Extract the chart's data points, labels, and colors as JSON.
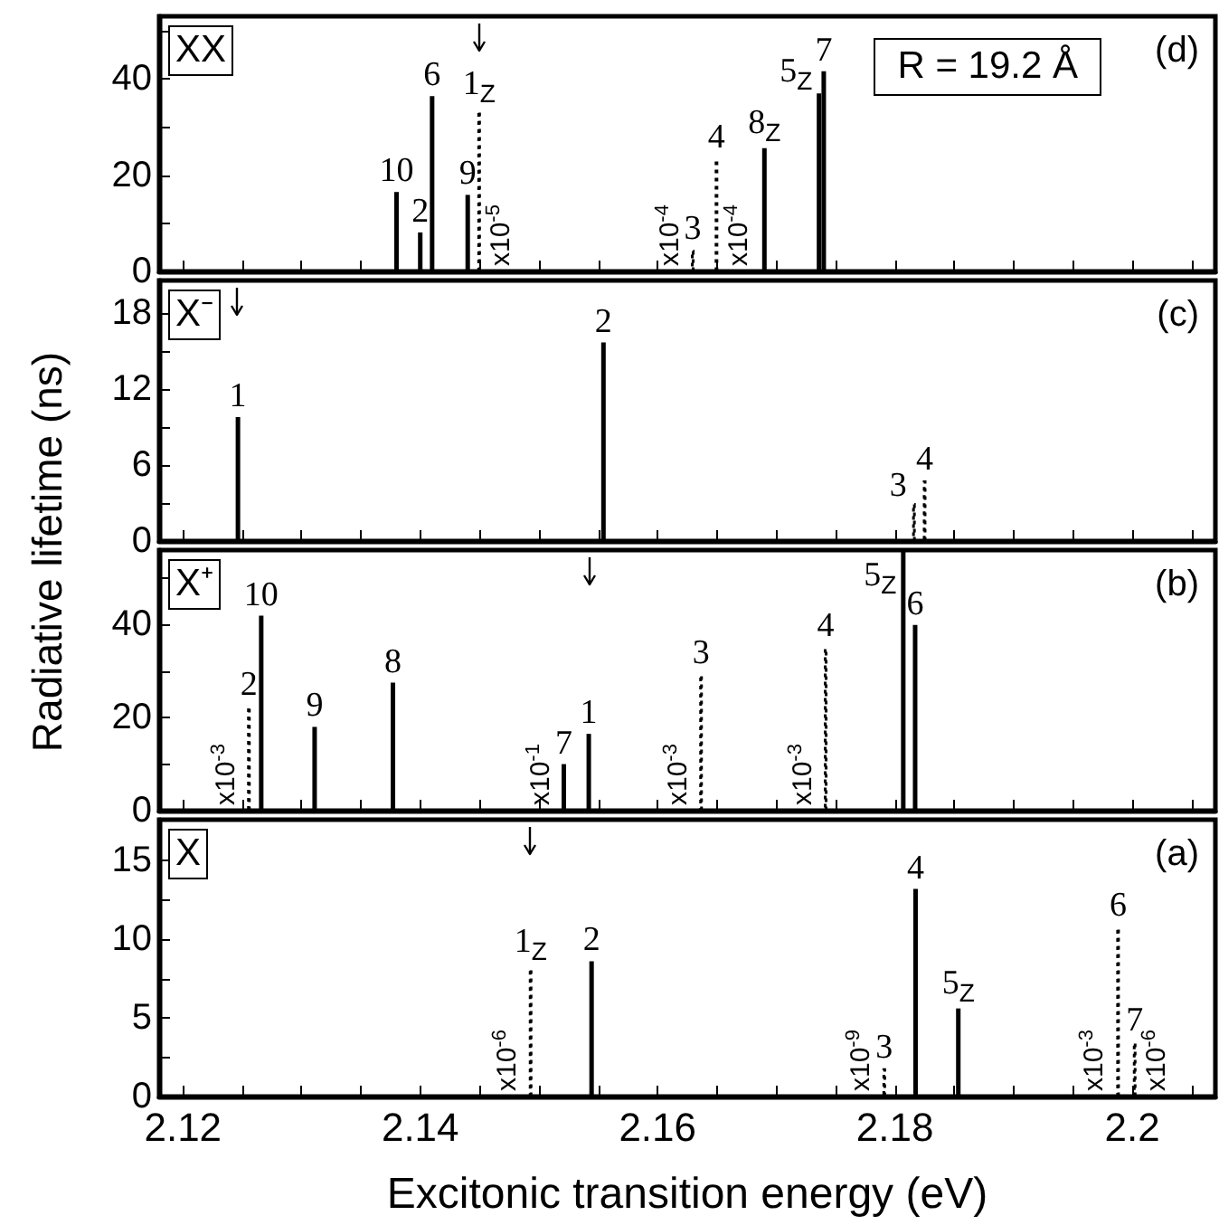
{
  "chart_data": [
    {
      "type": "bar",
      "title": "(d)",
      "tick_labels": "y",
      "xlim": [
        2.118,
        2.207
      ],
      "xticks": [
        2.12,
        {
          "value": 2.125,
          "label": null
        },
        {
          "value": 2.13,
          "label": null
        },
        {
          "value": 2.135,
          "label": null
        },
        2.14,
        {
          "value": 2.145,
          "label": null
        },
        {
          "value": 2.15,
          "label": null
        },
        {
          "value": 2.155,
          "label": null
        },
        2.16,
        {
          "value": 2.165,
          "label": null
        },
        {
          "value": 2.17,
          "label": null
        },
        {
          "value": 2.175,
          "label": null
        },
        2.18,
        {
          "value": 2.185,
          "label": null
        },
        {
          "value": 2.19,
          "label": null
        },
        {
          "value": 2.195,
          "label": null
        },
        2.2,
        {
          "value": 2.205,
          "label": null
        }
      ],
      "ylim": [
        0,
        53
      ],
      "yticks": [
        0,
        {
          "value": 10,
          "label": null
        },
        20,
        {
          "value": 30,
          "label": null
        },
        40,
        {
          "value": 50,
          "label": null
        }
      ],
      "series": [
        {
          "name": "10",
          "color": "#000000",
          "x": [
            2.138
          ],
          "values": [
            16.5
          ]
        },
        {
          "name": "2",
          "color": "#000000",
          "x": [
            2.14
          ],
          "values": [
            8.1
          ]
        },
        {
          "name": "6",
          "color": "#000000",
          "x": [
            2.141
          ],
          "values": [
            36.4
          ]
        },
        {
          "name": "9",
          "color": "#000000",
          "x": [
            2.144
          ],
          "values": [
            15.9
          ]
        },
        {
          "name": "1$_{Z}$",
          "color": "#000000",
          "line_style": "dotted",
          "x": [
            2.145
          ],
          "values": [
            33.6
          ]
        },
        {
          "name": "3",
          "color": "#000000",
          "line_style": "dotted",
          "x": [
            2.163
          ],
          "values": [
            4.5
          ]
        },
        {
          "name": "4",
          "color": "#000000",
          "line_style": "dotted",
          "x": [
            2.165
          ],
          "values": [
            23.5
          ]
        },
        {
          "name": "8$_{Z}$",
          "color": "#000000",
          "x": [
            2.169
          ],
          "values": [
            25.6
          ]
        },
        {
          "name": "5$_{Z}$",
          "color": "#000000",
          "x": [
            2.1736
          ],
          "values": [
            37
          ]
        },
        {
          "name": "7",
          "color": "#000000",
          "x": [
            2.174
          ],
          "values": [
            41.6
          ]
        }
      ],
      "ref_lines": [
        {
          "axis": "x",
          "value": 2.145
        }
      ],
      "annotations": [
        "XX",
        "R = 19.2 Å",
        {
          "text": "x10$^{-5}$",
          "x": 2.145,
          "y": 0
        },
        {
          "text": "x10$^{-4}$",
          "x": 2.163,
          "y": 0
        },
        {
          "text": "x10$^{-4}$",
          "x": 2.165,
          "y": 0
        }
      ]
    },
    {
      "type": "bar",
      "title": "(c)",
      "ylabel": "Radiative lifetime (ns)",
      "tick_labels": "y",
      "xlim": [
        2.118,
        2.207
      ],
      "xticks": [
        2.12,
        {
          "value": 2.125,
          "label": null
        },
        {
          "value": 2.13,
          "label": null
        },
        {
          "value": 2.135,
          "label": null
        },
        2.14,
        {
          "value": 2.145,
          "label": null
        },
        {
          "value": 2.15,
          "label": null
        },
        {
          "value": 2.155,
          "label": null
        },
        2.16,
        {
          "value": 2.165,
          "label": null
        },
        {
          "value": 2.17,
          "label": null
        },
        {
          "value": 2.175,
          "label": null
        },
        2.18,
        {
          "value": 2.185,
          "label": null
        },
        {
          "value": 2.19,
          "label": null
        },
        {
          "value": 2.195,
          "label": null
        },
        2.2,
        {
          "value": 2.205,
          "label": null
        }
      ],
      "ylim": [
        0,
        20.6
      ],
      "yticks": [
        0,
        {
          "value": 3,
          "label": null
        },
        6,
        {
          "value": 9,
          "label": null
        },
        12,
        {
          "value": 15,
          "label": null
        },
        18
      ],
      "series": [
        {
          "name": "1",
          "color": "#000000",
          "x": [
            2.1246
          ],
          "values": [
            9.8
          ]
        },
        {
          "name": "2",
          "color": "#000000",
          "x": [
            2.1554
          ],
          "values": [
            15.7
          ]
        },
        {
          "name": "3",
          "color": "#000000",
          "line_style": "dotted",
          "x": [
            2.1816
          ],
          "values": [
            3
          ]
        },
        {
          "name": "4",
          "color": "#000000",
          "line_style": "dotted",
          "x": [
            2.1825
          ],
          "values": [
            4.8
          ]
        }
      ],
      "ref_lines": [
        {
          "axis": "x",
          "value": 2.1246
        }
      ],
      "annotations": [
        "X⁻"
      ]
    },
    {
      "type": "bar",
      "title": "(b)",
      "tick_labels": "y",
      "xlim": [
        2.118,
        2.207
      ],
      "xticks": [
        2.12,
        {
          "value": 2.125,
          "label": null
        },
        {
          "value": 2.13,
          "label": null
        },
        {
          "value": 2.135,
          "label": null
        },
        2.14,
        {
          "value": 2.145,
          "label": null
        },
        {
          "value": 2.15,
          "label": null
        },
        {
          "value": 2.155,
          "label": null
        },
        2.16,
        {
          "value": 2.165,
          "label": null
        },
        {
          "value": 2.17,
          "label": null
        },
        {
          "value": 2.175,
          "label": null
        },
        2.18,
        {
          "value": 2.185,
          "label": null
        },
        {
          "value": 2.19,
          "label": null
        },
        {
          "value": 2.195,
          "label": null
        },
        2.2,
        {
          "value": 2.205,
          "label": null
        }
      ],
      "ylim": [
        0,
        56
      ],
      "yticks": [
        0,
        {
          "value": 10,
          "label": null
        },
        20,
        {
          "value": 30,
          "label": null
        },
        40,
        {
          "value": 50,
          "label": null
        }
      ],
      "series": [
        {
          "name": "2",
          "color": "#000000",
          "line_style": "dotted",
          "x": [
            2.1256
          ],
          "values": [
            22.6
          ]
        },
        {
          "name": "10",
          "color": "#000000",
          "x": [
            2.1266
          ],
          "values": [
            41.9
          ]
        },
        {
          "name": "9",
          "color": "#000000",
          "x": [
            2.1311
          ],
          "values": [
            18
          ]
        },
        {
          "name": "8",
          "color": "#000000",
          "x": [
            2.1377
          ],
          "values": [
            27.5
          ]
        },
        {
          "name": "7",
          "color": "#000000",
          "x": [
            2.1521
          ],
          "values": [
            10
          ]
        },
        {
          "name": "1",
          "color": "#000000",
          "x": [
            2.1542
          ],
          "values": [
            16.5
          ]
        },
        {
          "name": "3",
          "color": "#000000",
          "line_style": "dotted",
          "x": [
            2.1637
          ],
          "values": [
            29.4
          ]
        },
        {
          "name": "4",
          "color": "#000000",
          "line_style": "dotted",
          "x": [
            2.1742
          ],
          "values": [
            35.1
          ]
        },
        {
          "name": "5$_{Z}$",
          "color": "#000000",
          "x": [
            2.1807
          ],
          "values": [
            56
          ]
        },
        {
          "name": "6",
          "color": "#000000",
          "x": [
            2.1817
          ],
          "values": [
            39.9
          ]
        }
      ],
      "ref_lines": [
        {
          "axis": "x",
          "value": 2.1542
        }
      ],
      "annotations": [
        "X⁺",
        {
          "text": "x10$^{-3}$",
          "x": 2.1256,
          "y": 0
        },
        {
          "text": "x10$^{-1}$",
          "x": 2.1521,
          "y": 0
        },
        {
          "text": "x10$^{-3}$",
          "x": 2.1637,
          "y": 0
        },
        {
          "text": "x10$^{-3}$",
          "x": 2.1742,
          "y": 0
        }
      ]
    },
    {
      "type": "bar",
      "title": "(a)",
      "xlabel": "Excitonic transition energy (eV)",
      "xlim": [
        2.118,
        2.207
      ],
      "xticks": [
        2.12,
        {
          "value": 2.125,
          "label": null
        },
        {
          "value": 2.13,
          "label": null
        },
        {
          "value": 2.135,
          "label": null
        },
        2.14,
        {
          "value": 2.145,
          "label": null
        },
        {
          "value": 2.15,
          "label": null
        },
        {
          "value": 2.155,
          "label": null
        },
        2.16,
        {
          "value": 2.165,
          "label": null
        },
        {
          "value": 2.17,
          "label": null
        },
        {
          "value": 2.175,
          "label": null
        },
        2.18,
        {
          "value": 2.185,
          "label": null
        },
        {
          "value": 2.19,
          "label": null
        },
        {
          "value": 2.195,
          "label": null
        },
        2.2,
        {
          "value": 2.205,
          "label": null
        }
      ],
      "ylim": [
        0,
        17.6
      ],
      "yticks": [
        0,
        {
          "value": 2.5,
          "label": null
        },
        5,
        {
          "value": 7.5,
          "label": null
        },
        10,
        {
          "value": 12.5,
          "label": null
        },
        15
      ],
      "series": [
        {
          "name": "1$_{Z}$",
          "color": "#000000",
          "line_style": "dotted",
          "x": [
            2.1493
          ],
          "values": [
            8.2
          ]
        },
        {
          "name": "2",
          "color": "#000000",
          "x": [
            2.1544
          ],
          "values": [
            8.6
          ]
        },
        {
          "name": "3",
          "color": "#000000",
          "line_style": "dotted",
          "x": [
            2.1791
          ],
          "values": [
            1.8
          ]
        },
        {
          "name": "4",
          "color": "#000000",
          "x": [
            2.1817
          ],
          "values": [
            13.2
          ]
        },
        {
          "name": "5$_{Z}$",
          "color": "#000000",
          "x": [
            2.1853
          ],
          "values": [
            5.6
          ]
        },
        {
          "name": "6",
          "color": "#000000",
          "line_style": "dotted",
          "x": [
            2.1988
          ],
          "values": [
            10.8
          ]
        },
        {
          "name": "7",
          "color": "#000000",
          "line_style": "dotted",
          "x": [
            2.2002
          ],
          "values": [
            3.5
          ]
        }
      ],
      "ref_lines": [
        {
          "axis": "x",
          "value": 2.1493
        }
      ],
      "annotations": [
        "X",
        {
          "text": "x10$^{-6}$",
          "x": 2.1493,
          "y": 0
        },
        {
          "text": "x10$^{-9}$",
          "x": 2.1791,
          "y": 0
        },
        {
          "text": "x10$^{-3}$",
          "x": 2.1988,
          "y": 0
        },
        {
          "text": "x10$^{-6}$",
          "x": 2.2002,
          "y": 0
        }
      ]
    }
  ]
}
